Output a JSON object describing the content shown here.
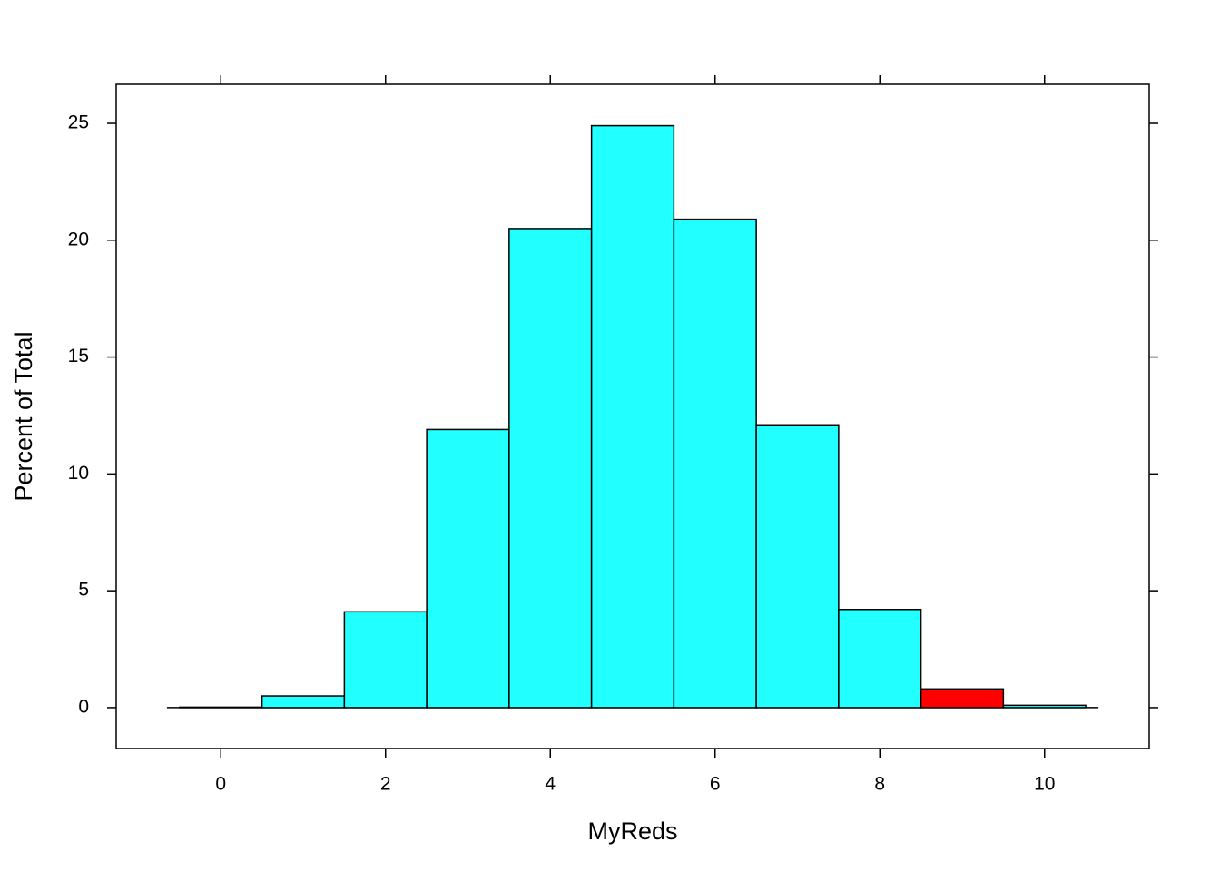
{
  "chart_data": {
    "type": "histogram",
    "xlabel": "MyReds",
    "ylabel": "Percent of Total",
    "bins": [
      -0.5,
      0.5,
      1.5,
      2.5,
      3.5,
      4.5,
      5.5,
      6.5,
      7.5,
      8.5,
      9.5,
      10.5
    ],
    "values": [
      0.02,
      0.5,
      4.1,
      11.9,
      20.5,
      24.9,
      20.9,
      12.1,
      4.2,
      0.8,
      0.1
    ],
    "colors": [
      "#22ffff",
      "#22ffff",
      "#22ffff",
      "#22ffff",
      "#22ffff",
      "#22ffff",
      "#22ffff",
      "#22ffff",
      "#22ffff",
      "#ff0000",
      "#22ffff"
    ],
    "xlim": [
      -1.27,
      11.27
    ],
    "ylim": [
      -1.75,
      26.67
    ],
    "xticks": [
      0,
      2,
      4,
      6,
      8,
      10
    ],
    "yticks": [
      0,
      5,
      10,
      15,
      20,
      25
    ]
  }
}
